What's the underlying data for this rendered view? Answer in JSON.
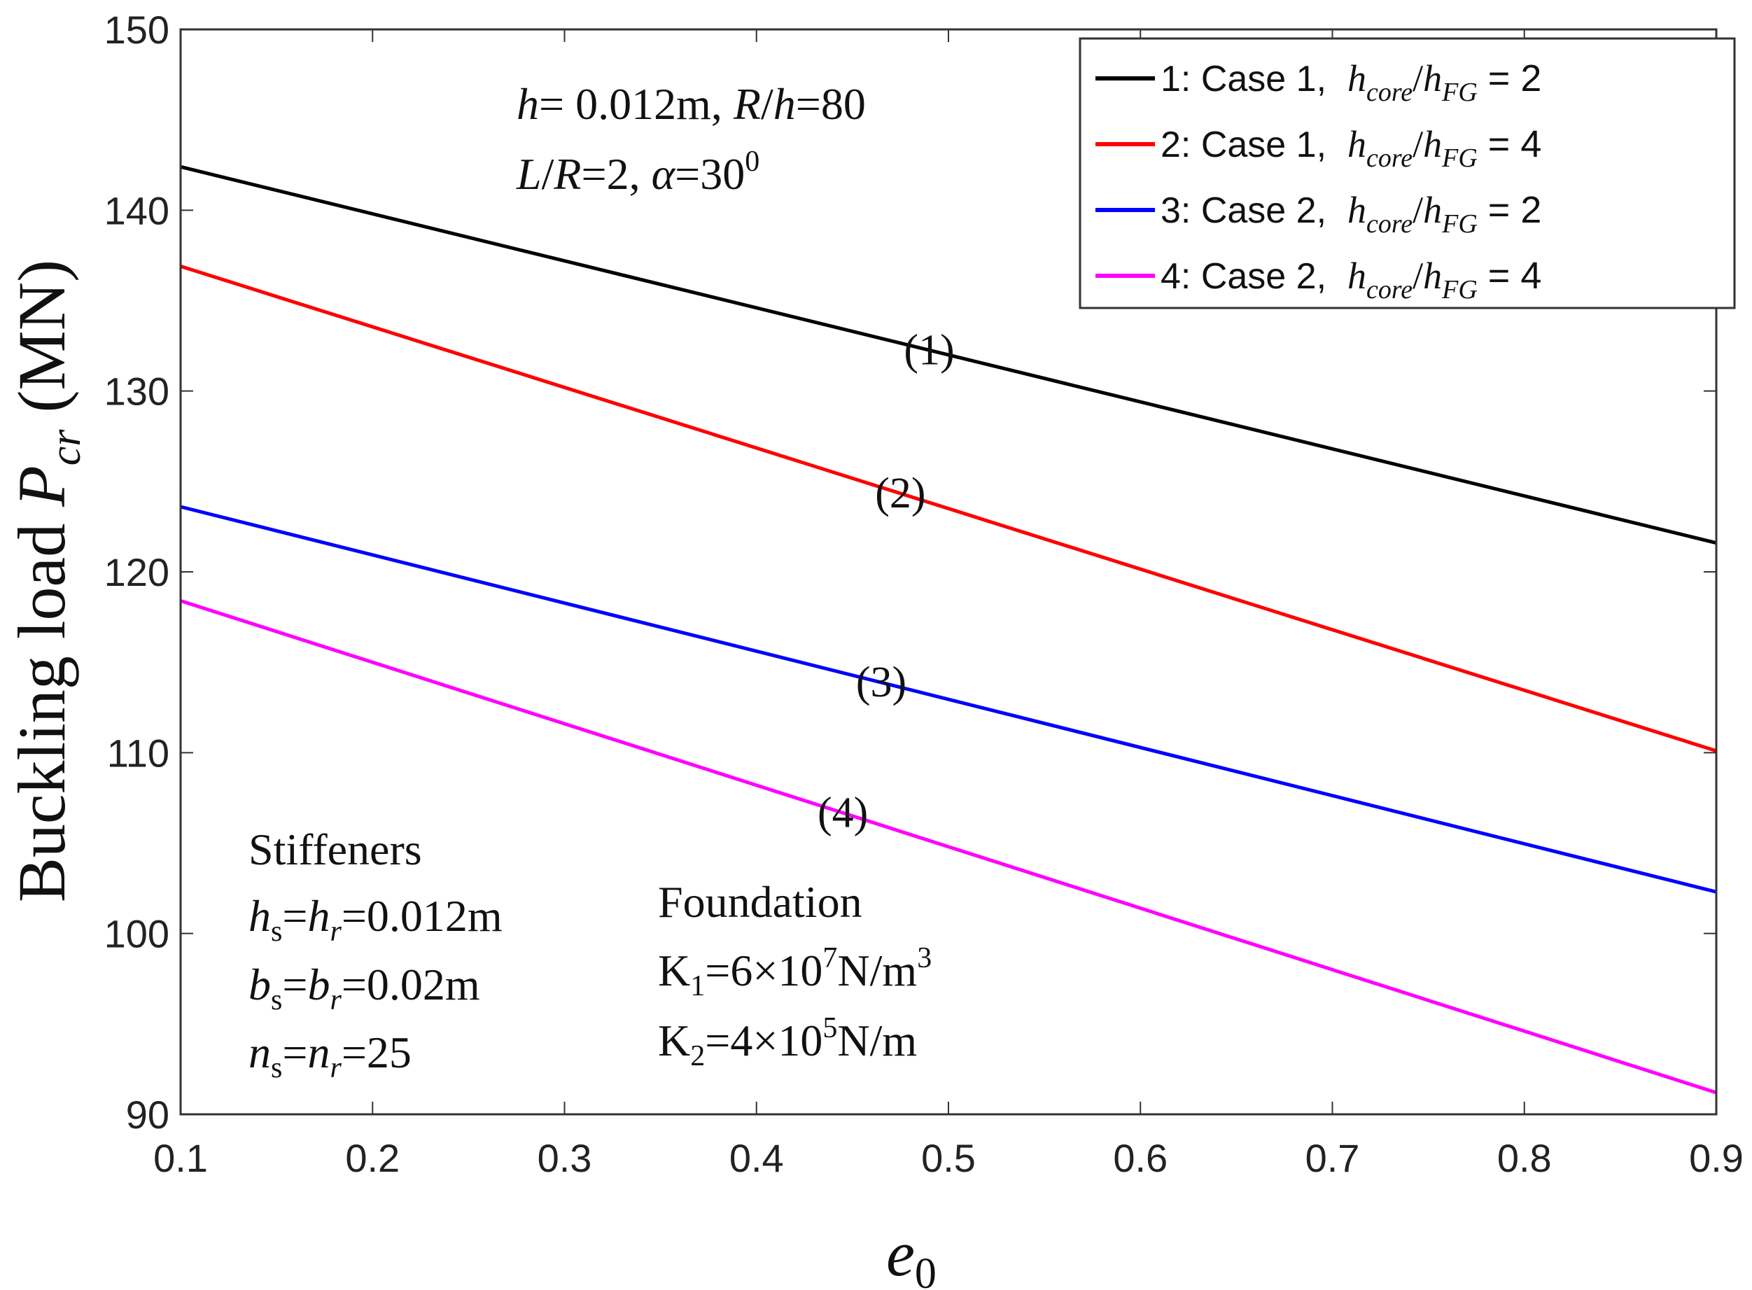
{
  "chart_data": {
    "type": "line",
    "title": "",
    "xlabel": "e0",
    "ylabel": "Buckling load Pcr (MN)",
    "xlim": [
      0.1,
      0.9
    ],
    "ylim": [
      90,
      150
    ],
    "xticks": [
      "0.1",
      "0.2",
      "0.3",
      "0.4",
      "0.5",
      "0.6",
      "0.7",
      "0.8",
      "0.9"
    ],
    "yticks": [
      "90",
      "100",
      "110",
      "120",
      "130",
      "140",
      "150"
    ],
    "grid": false,
    "legend_position": "top-right",
    "series": [
      {
        "name": "1: Case 1,  hcore/hFG = 2",
        "legend_label": "1: Case 1,",
        "ratio_label": "= 2",
        "color": "#000000",
        "x": [
          0.1,
          0.9
        ],
        "y": [
          142.4,
          121.6
        ],
        "curve_label": "(1)",
        "label_x": 0.49
      },
      {
        "name": "2: Case 1,  hcore/hFG = 4",
        "legend_label": "2: Case 1,",
        "ratio_label": "= 4",
        "color": "#ff0000",
        "x": [
          0.1,
          0.9
        ],
        "y": [
          136.9,
          110.1
        ],
        "curve_label": "(2)",
        "label_x": 0.475
      },
      {
        "name": "3: Case 2,  hcore/hFG = 2",
        "legend_label": "3: Case 2,",
        "ratio_label": "= 2",
        "color": "#0000ff",
        "x": [
          0.1,
          0.9
        ],
        "y": [
          123.6,
          102.3
        ],
        "curve_label": "(3)",
        "label_x": 0.465
      },
      {
        "name": "4: Case 2,  hcore/hFG = 4",
        "legend_label": "4: Case 2,",
        "ratio_label": "= 4",
        "color": "#ff00ff",
        "x": [
          0.1,
          0.9
        ],
        "y": [
          118.4,
          91.2
        ],
        "curve_label": "(4)",
        "label_x": 0.445
      }
    ],
    "annotations": {
      "geometry_line1": "h= 0.012m, R/h=80",
      "geometry_line2": "L/R=2, α=30⁰",
      "stiffeners_title": "Stiffeners",
      "stiffeners_h": "hs=hr=0.012m",
      "stiffeners_b": "bs=br=0.02m",
      "stiffeners_n": "ns=nr=25",
      "foundation_title": "Foundation",
      "foundation_k1": "K1=6×10⁷N/m³",
      "foundation_k2": "K2=4×10⁵N/m"
    }
  }
}
